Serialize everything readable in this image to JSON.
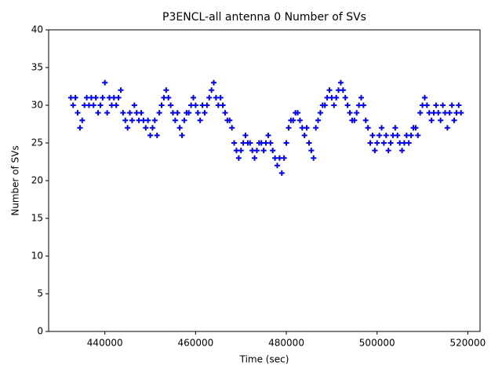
{
  "chart_data": {
    "type": "scatter",
    "title": "P3ENCL-all antenna 0 Number of SVs",
    "x_label": "Time (sec)",
    "y_label": "Number of SVs",
    "color": "#0000ff",
    "marker": "+",
    "xlim": [
      427600,
      522700
    ],
    "ylim": [
      0,
      40
    ],
    "xticks": [
      440000,
      460000,
      480000,
      500000,
      520000
    ],
    "yticks": [
      0,
      5,
      10,
      15,
      20,
      25,
      30,
      35,
      40
    ],
    "x": [
      432500,
      433000,
      433500,
      434000,
      434500,
      435000,
      435500,
      436000,
      436500,
      437000,
      437500,
      438000,
      438500,
      439000,
      439500,
      440000,
      440500,
      441000,
      441500,
      442000,
      442500,
      443000,
      443500,
      444000,
      444500,
      445000,
      445500,
      446000,
      446500,
      447000,
      447500,
      448000,
      448500,
      449000,
      449500,
      450000,
      450500,
      451000,
      451500,
      452000,
      452500,
      453000,
      453500,
      454000,
      454500,
      455000,
      455500,
      456000,
      456500,
      457000,
      457500,
      458000,
      458500,
      459000,
      459500,
      460000,
      460500,
      461000,
      461500,
      462000,
      462500,
      463000,
      463500,
      464000,
      464500,
      465000,
      465500,
      466000,
      466500,
      467000,
      467500,
      468000,
      468500,
      469000,
      469500,
      470000,
      470500,
      471000,
      471500,
      472000,
      472500,
      473000,
      473500,
      474000,
      474500,
      475000,
      475500,
      476000,
      476500,
      477000,
      477500,
      478000,
      478500,
      479000,
      479500,
      480000,
      480500,
      481000,
      481500,
      482000,
      482500,
      483000,
      483500,
      484000,
      484500,
      485000,
      485500,
      486000,
      486500,
      487000,
      487500,
      488000,
      488500,
      489000,
      489500,
      490000,
      490500,
      491000,
      491500,
      492000,
      492500,
      493000,
      493500,
      494000,
      494500,
      495000,
      495500,
      496000,
      496500,
      497000,
      497500,
      498000,
      498500,
      499000,
      499500,
      500000,
      500500,
      501000,
      501500,
      502000,
      502500,
      503000,
      503500,
      504000,
      504500,
      505000,
      505500,
      506000,
      506500,
      507000,
      507500,
      508000,
      508500,
      509000,
      509500,
      510000,
      510500,
      511000,
      511500,
      512000,
      512500,
      513000,
      513500,
      514000,
      514500,
      515000,
      515500,
      516000,
      516500,
      517000,
      517500,
      518000,
      518500
    ],
    "values": [
      31,
      30,
      31,
      29,
      27,
      28,
      30,
      31,
      30,
      31,
      30,
      31,
      29,
      30,
      31,
      33,
      29,
      31,
      30,
      31,
      30,
      31,
      32,
      29,
      28,
      27,
      29,
      28,
      30,
      29,
      28,
      29,
      28,
      27,
      28,
      26,
      27,
      28,
      26,
      29,
      30,
      31,
      32,
      31,
      30,
      29,
      28,
      29,
      27,
      26,
      28,
      29,
      29,
      30,
      31,
      30,
      29,
      28,
      30,
      29,
      30,
      31,
      32,
      33,
      31,
      30,
      31,
      30,
      29,
      28,
      28,
      27,
      25,
      24,
      23,
      24,
      25,
      26,
      25,
      25,
      24,
      23,
      24,
      25,
      25,
      24,
      25,
      26,
      25,
      24,
      23,
      22,
      23,
      21,
      23,
      25,
      27,
      28,
      28,
      29,
      29,
      28,
      27,
      26,
      27,
      25,
      24,
      23,
      27,
      28,
      29,
      30,
      30,
      31,
      32,
      31,
      30,
      31,
      32,
      33,
      32,
      31,
      30,
      29,
      28,
      28,
      29,
      30,
      31,
      30,
      28,
      27,
      25,
      26,
      24,
      25,
      26,
      27,
      25,
      26,
      24,
      25,
      26,
      27,
      26,
      25,
      24,
      25,
      26,
      25,
      26,
      27,
      27,
      26,
      29,
      30,
      31,
      30,
      29,
      28,
      29,
      30,
      29,
      28,
      30,
      29,
      27,
      29,
      30,
      28,
      29,
      30,
      29
    ]
  }
}
